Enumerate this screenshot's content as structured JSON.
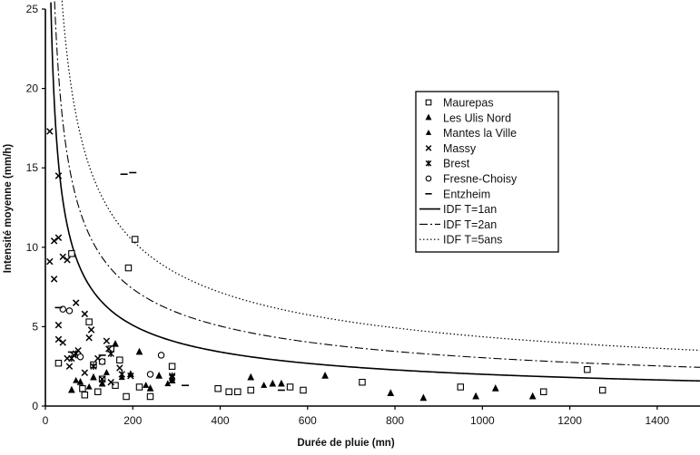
{
  "chart_data": {
    "type": "scatter",
    "title": "",
    "xlabel": "Durée de pluie (mn)",
    "ylabel": "Intensité moyenne (mm/h)",
    "xlim": [
      0,
      1500
    ],
    "ylim": [
      0,
      25
    ],
    "xticks": [
      "0",
      "200",
      "400",
      "600",
      "800",
      "1000",
      "1200",
      "1400"
    ],
    "yticks": [
      "0",
      "5",
      "10",
      "15",
      "20",
      "25"
    ],
    "legend_position": "top-center-right",
    "series": [
      {
        "name": "Maurepas",
        "marker": "square",
        "points": [
          [
            30,
            2.7
          ],
          [
            60,
            9.6
          ],
          [
            85,
            1.1
          ],
          [
            90,
            0.7
          ],
          [
            100,
            5.3
          ],
          [
            110,
            2.6
          ],
          [
            120,
            0.9
          ],
          [
            130,
            1.7
          ],
          [
            150,
            3.6
          ],
          [
            160,
            1.3
          ],
          [
            170,
            2.9
          ],
          [
            185,
            0.6
          ],
          [
            190,
            8.7
          ],
          [
            205,
            10.5
          ],
          [
            215,
            1.2
          ],
          [
            240,
            0.6
          ],
          [
            290,
            2.5
          ],
          [
            395,
            1.1
          ],
          [
            420,
            0.9
          ],
          [
            440,
            0.9
          ],
          [
            470,
            1.0
          ],
          [
            560,
            1.2
          ],
          [
            590,
            1.0
          ],
          [
            725,
            1.5
          ],
          [
            950,
            1.2
          ],
          [
            1140,
            0.9
          ],
          [
            1240,
            2.3
          ],
          [
            1275,
            1.0
          ]
        ]
      },
      {
        "name": "Les Ulis Nord",
        "marker": "triangle",
        "points": [
          [
            60,
            1.0
          ],
          [
            80,
            1.5
          ],
          [
            110,
            1.8
          ],
          [
            130,
            1.4
          ],
          [
            160,
            3.9
          ],
          [
            195,
            2.0
          ],
          [
            215,
            3.4
          ],
          [
            240,
            1.1
          ],
          [
            260,
            1.9
          ],
          [
            290,
            1.6
          ],
          [
            470,
            1.8
          ],
          [
            520,
            1.4
          ],
          [
            540,
            1.4
          ],
          [
            640,
            1.9
          ],
          [
            790,
            0.8
          ],
          [
            865,
            0.5
          ],
          [
            985,
            0.6
          ],
          [
            1030,
            1.1
          ],
          [
            1115,
            0.6
          ]
        ]
      },
      {
        "name": "Mantes la Ville",
        "marker": "triangle-filled",
        "points": [
          [
            70,
            1.6
          ],
          [
            100,
            1.2
          ],
          [
            140,
            2.1
          ],
          [
            175,
            1.8
          ],
          [
            230,
            1.3
          ],
          [
            280,
            1.4
          ],
          [
            500,
            1.3
          ]
        ]
      },
      {
        "name": "Massy",
        "marker": "x",
        "points": [
          [
            10,
            17.3
          ],
          [
            10,
            9.1
          ],
          [
            20,
            10.4
          ],
          [
            20,
            8.0
          ],
          [
            30,
            10.6
          ],
          [
            30,
            14.5
          ],
          [
            30,
            5.1
          ],
          [
            30,
            4.2
          ],
          [
            40,
            9.4
          ],
          [
            40,
            4.0
          ],
          [
            50,
            9.2
          ],
          [
            50,
            3.0
          ],
          [
            55,
            2.5
          ],
          [
            65,
            3.2
          ],
          [
            70,
            6.5
          ],
          [
            75,
            3.5
          ],
          [
            90,
            5.8
          ],
          [
            90,
            2.1
          ],
          [
            100,
            4.3
          ],
          [
            105,
            4.8
          ],
          [
            120,
            3.0
          ],
          [
            130,
            2.8
          ],
          [
            130,
            1.7
          ],
          [
            140,
            4.1
          ],
          [
            145,
            3.6
          ],
          [
            150,
            1.5
          ],
          [
            170,
            2.4
          ],
          [
            195,
            1.9
          ],
          [
            290,
            1.8
          ]
        ]
      },
      {
        "name": "Brest",
        "marker": "asterisk",
        "points": [
          [
            60,
            3.0
          ],
          [
            70,
            3.3
          ],
          [
            110,
            2.5
          ],
          [
            150,
            3.3
          ],
          [
            175,
            2.0
          ],
          [
            290,
            1.9
          ]
        ]
      },
      {
        "name": "Fresne-Choisy",
        "marker": "circle",
        "points": [
          [
            40,
            6.1
          ],
          [
            55,
            6.0
          ],
          [
            80,
            3.1
          ],
          [
            130,
            2.8
          ],
          [
            240,
            2.0
          ],
          [
            265,
            3.2
          ]
        ]
      },
      {
        "name": "Entzheim",
        "marker": "dash",
        "points": [
          [
            30,
            6.2
          ],
          [
            60,
            3.4
          ],
          [
            130,
            3.2
          ],
          [
            180,
            14.6
          ],
          [
            200,
            14.7
          ],
          [
            320,
            1.3
          ],
          [
            540,
            1.0
          ]
        ]
      },
      {
        "name": "IDF T=1an",
        "type": "line",
        "style": "solid",
        "formula": "y = 110 / x^0.58 (approx.)"
      },
      {
        "name": "IDF T=2an",
        "type": "line",
        "style": "dashdot",
        "formula": "y = 136 / x^0.55 (approx.)"
      },
      {
        "name": "IDF T=5ans",
        "type": "line",
        "style": "dotted",
        "formula": "y = 182 / x^0.54 (approx.)"
      }
    ]
  }
}
